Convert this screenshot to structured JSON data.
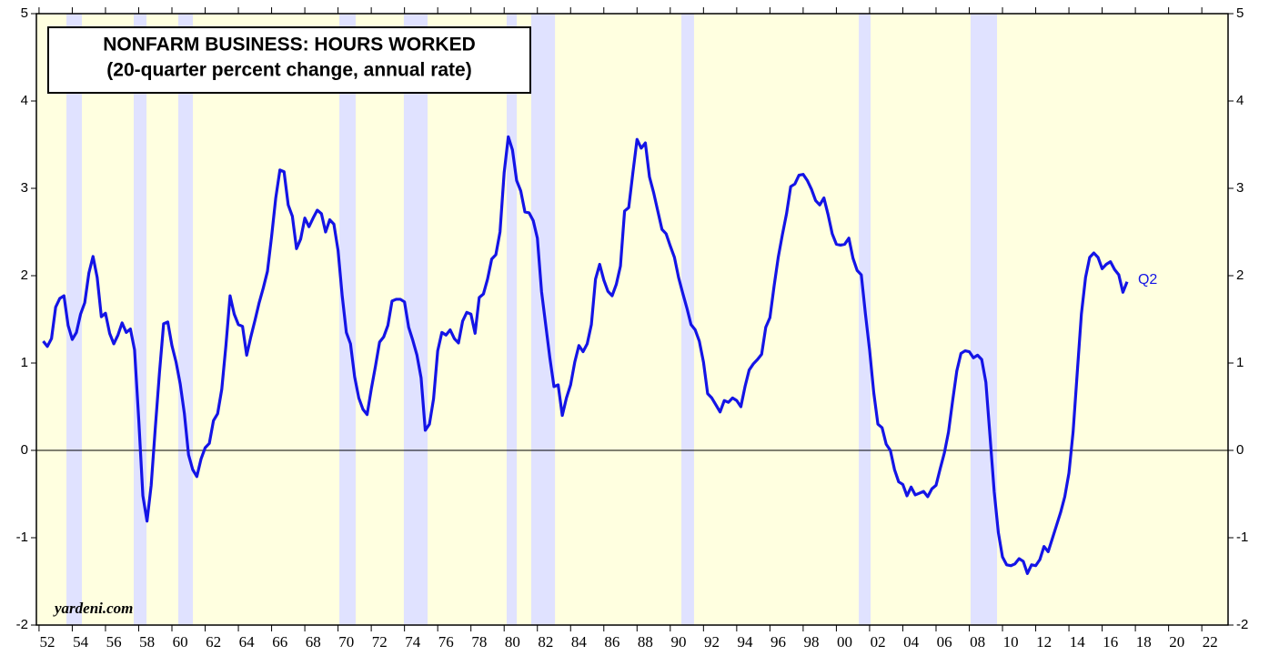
{
  "chart_data": {
    "type": "line",
    "title": "NONFARM BUSINESS: HOURS WORKED",
    "subtitle": "(20-quarter percent change, annual rate)",
    "source": "yardeni.com",
    "background": "#ffffe0",
    "shade_color": "#e0e2ff",
    "shaded_periods": [
      [
        1953.65,
        1954.58
      ],
      [
        1957.7,
        1958.47
      ],
      [
        1960.38,
        1961.26
      ],
      [
        1970.08,
        1971.06
      ],
      [
        1973.96,
        1975.39
      ],
      [
        1980.15,
        1980.76
      ],
      [
        1981.63,
        1983.06
      ],
      [
        1990.67,
        1991.43
      ],
      [
        2001.35,
        2002.06
      ],
      [
        2008.08,
        2009.67
      ]
    ],
    "xlim": [
      1951.84,
      2023.58
    ],
    "ylim": [
      -2,
      5
    ],
    "yticks": [
      -2,
      -1,
      0,
      1,
      2,
      3,
      4,
      5
    ],
    "xticks": [
      {
        "value": 1952,
        "label": "52"
      },
      {
        "value": 1954,
        "label": "54"
      },
      {
        "value": 1956,
        "label": "56"
      },
      {
        "value": 1958,
        "label": "58"
      },
      {
        "value": 1960,
        "label": "60"
      },
      {
        "value": 1962,
        "label": "62"
      },
      {
        "value": 1964,
        "label": "64"
      },
      {
        "value": 1966,
        "label": "66"
      },
      {
        "value": 1968,
        "label": "68"
      },
      {
        "value": 1970,
        "label": "70"
      },
      {
        "value": 1972,
        "label": "72"
      },
      {
        "value": 1974,
        "label": "74"
      },
      {
        "value": 1976,
        "label": "76"
      },
      {
        "value": 1978,
        "label": "78"
      },
      {
        "value": 1980,
        "label": "80"
      },
      {
        "value": 1982,
        "label": "82"
      },
      {
        "value": 1984,
        "label": "84"
      },
      {
        "value": 1986,
        "label": "86"
      },
      {
        "value": 1988,
        "label": "88"
      },
      {
        "value": 1990,
        "label": "90"
      },
      {
        "value": 1992,
        "label": "92"
      },
      {
        "value": 1994,
        "label": "94"
      },
      {
        "value": 1996,
        "label": "96"
      },
      {
        "value": 1998,
        "label": "98"
      },
      {
        "value": 2000,
        "label": "00"
      },
      {
        "value": 2002,
        "label": "02"
      },
      {
        "value": 2004,
        "label": "04"
      },
      {
        "value": 2006,
        "label": "06"
      },
      {
        "value": 2008,
        "label": "08"
      },
      {
        "value": 2010,
        "label": "10"
      },
      {
        "value": 2012,
        "label": "12"
      },
      {
        "value": 2014,
        "label": "14"
      },
      {
        "value": 2016,
        "label": "16"
      },
      {
        "value": 2018,
        "label": "18"
      },
      {
        "value": 2020,
        "label": "20"
      },
      {
        "value": 2022,
        "label": "22"
      }
    ],
    "x": [
      1952.25,
      1952.5,
      1952.75,
      1953,
      1953.25,
      1953.5,
      1953.75,
      1954,
      1954.25,
      1954.5,
      1954.75,
      1955,
      1955.25,
      1955.5,
      1955.75,
      1956,
      1956.25,
      1956.5,
      1956.75,
      1957,
      1957.25,
      1957.5,
      1957.75,
      1958,
      1958.25,
      1958.5,
      1958.75,
      1959,
      1959.25,
      1959.5,
      1959.75,
      1960,
      1960.25,
      1960.5,
      1960.75,
      1961,
      1961.25,
      1961.5,
      1961.75,
      1962,
      1962.25,
      1962.5,
      1962.75,
      1963,
      1963.25,
      1963.5,
      1963.75,
      1964,
      1964.25,
      1964.5,
      1964.75,
      1965,
      1965.25,
      1965.5,
      1965.75,
      1966,
      1966.25,
      1966.5,
      1966.75,
      1967,
      1967.25,
      1967.5,
      1967.75,
      1968,
      1968.25,
      1968.5,
      1968.75,
      1969,
      1969.25,
      1969.5,
      1969.75,
      1970,
      1970.25,
      1970.5,
      1970.75,
      1971,
      1971.25,
      1971.5,
      1971.75,
      1972,
      1972.25,
      1972.5,
      1972.75,
      1973,
      1973.25,
      1973.5,
      1973.75,
      1974,
      1974.25,
      1974.5,
      1974.75,
      1975,
      1975.25,
      1975.5,
      1975.75,
      1976,
      1976.25,
      1976.5,
      1976.75,
      1977,
      1977.25,
      1977.5,
      1977.75,
      1978,
      1978.25,
      1978.5,
      1978.75,
      1979,
      1979.25,
      1979.5,
      1979.75,
      1980,
      1980.25,
      1980.5,
      1980.75,
      1981,
      1981.25,
      1981.5,
      1981.75,
      1982,
      1982.25,
      1982.5,
      1982.75,
      1983,
      1983.25,
      1983.5,
      1983.75,
      1984,
      1984.25,
      1984.5,
      1984.75,
      1985,
      1985.25,
      1985.5,
      1985.75,
      1986,
      1986.25,
      1986.5,
      1986.75,
      1987,
      1987.25,
      1987.5,
      1987.75,
      1988,
      1988.25,
      1988.5,
      1988.75,
      1989,
      1989.25,
      1989.5,
      1989.75,
      1990,
      1990.25,
      1990.5,
      1990.75,
      1991,
      1991.25,
      1991.5,
      1991.75,
      1992,
      1992.25,
      1992.5,
      1992.75,
      1993,
      1993.25,
      1993.5,
      1993.75,
      1994,
      1994.25,
      1994.5,
      1994.75,
      1995,
      1995.25,
      1995.5,
      1995.75,
      1996,
      1996.25,
      1996.5,
      1996.75,
      1997,
      1997.25,
      1997.5,
      1997.75,
      1998,
      1998.25,
      1998.5,
      1998.75,
      1999,
      1999.25,
      1999.5,
      1999.75,
      2000,
      2000.25,
      2000.5,
      2000.75,
      2001,
      2001.25,
      2001.5,
      2001.75,
      2002,
      2002.25,
      2002.5,
      2002.75,
      2003,
      2003.25,
      2003.5,
      2003.75,
      2004,
      2004.25,
      2004.5,
      2004.75,
      2005,
      2005.25,
      2005.5,
      2005.75,
      2006,
      2006.25,
      2006.5,
      2006.75,
      2007,
      2007.25,
      2007.5,
      2007.75,
      2008,
      2008.25,
      2008.5,
      2008.75,
      2009,
      2009.25,
      2009.5,
      2009.75,
      2010,
      2010.25,
      2010.5,
      2010.75,
      2011,
      2011.25,
      2011.5,
      2011.75,
      2012,
      2012.25,
      2012.5,
      2012.75,
      2013,
      2013.25,
      2013.5,
      2013.75,
      2014,
      2014.25,
      2014.5,
      2014.75,
      2015,
      2015.25,
      2015.5,
      2015.75,
      2016,
      2016.25,
      2016.5,
      2016.75,
      2017,
      2017.25,
      2017.5
    ],
    "series": [
      {
        "end_label": "Q2",
        "color": "#1414e6",
        "values": [
          1.25,
          1.19,
          1.28,
          1.64,
          1.74,
          1.77,
          1.43,
          1.27,
          1.35,
          1.56,
          1.69,
          2.03,
          2.22,
          1.98,
          1.53,
          1.57,
          1.34,
          1.22,
          1.32,
          1.46,
          1.35,
          1.39,
          1.15,
          0.36,
          -0.52,
          -0.81,
          -0.4,
          0.26,
          0.89,
          1.45,
          1.47,
          1.2,
          1.01,
          0.76,
          0.42,
          -0.05,
          -0.22,
          -0.3,
          -0.1,
          0.03,
          0.08,
          0.34,
          0.42,
          0.7,
          1.2,
          1.77,
          1.56,
          1.44,
          1.42,
          1.09,
          1.3,
          1.49,
          1.69,
          1.86,
          2.05,
          2.45,
          2.89,
          3.21,
          3.19,
          2.81,
          2.68,
          2.31,
          2.42,
          2.66,
          2.56,
          2.66,
          2.75,
          2.71,
          2.5,
          2.64,
          2.59,
          2.29,
          1.77,
          1.35,
          1.22,
          0.84,
          0.6,
          0.47,
          0.41,
          0.7,
          0.96,
          1.24,
          1.3,
          1.43,
          1.71,
          1.73,
          1.73,
          1.7,
          1.41,
          1.26,
          1.09,
          0.83,
          0.23,
          0.3,
          0.59,
          1.14,
          1.35,
          1.32,
          1.38,
          1.28,
          1.23,
          1.48,
          1.58,
          1.56,
          1.34,
          1.75,
          1.79,
          1.96,
          2.19,
          2.24,
          2.5,
          3.18,
          3.59,
          3.44,
          3.09,
          2.97,
          2.73,
          2.72,
          2.63,
          2.43,
          1.82,
          1.44,
          1.06,
          0.73,
          0.75,
          0.4,
          0.6,
          0.75,
          1.01,
          1.2,
          1.13,
          1.22,
          1.44,
          1.96,
          2.13,
          1.95,
          1.82,
          1.77,
          1.9,
          2.11,
          2.74,
          2.78,
          3.18,
          3.56,
          3.46,
          3.52,
          3.13,
          2.95,
          2.74,
          2.53,
          2.48,
          2.34,
          2.21,
          1.98,
          1.8,
          1.63,
          1.44,
          1.38,
          1.25,
          1.01,
          0.65,
          0.6,
          0.52,
          0.44,
          0.57,
          0.55,
          0.6,
          0.57,
          0.5,
          0.73,
          0.92,
          0.99,
          1.04,
          1.1,
          1.41,
          1.52,
          1.88,
          2.21,
          2.47,
          2.71,
          3.02,
          3.05,
          3.15,
          3.16,
          3.09,
          2.99,
          2.86,
          2.81,
          2.89,
          2.7,
          2.48,
          2.36,
          2.35,
          2.36,
          2.43,
          2.2,
          2.06,
          2.01,
          1.56,
          1.15,
          0.66,
          0.3,
          0.26,
          0.07,
          0.0,
          -0.22,
          -0.36,
          -0.39,
          -0.52,
          -0.42,
          -0.51,
          -0.49,
          -0.47,
          -0.53,
          -0.44,
          -0.4,
          -0.21,
          -0.03,
          0.21,
          0.57,
          0.91,
          1.11,
          1.14,
          1.13,
          1.06,
          1.09,
          1.04,
          0.78,
          0.16,
          -0.47,
          -0.94,
          -1.22,
          -1.31,
          -1.32,
          -1.3,
          -1.24,
          -1.27,
          -1.41,
          -1.31,
          -1.32,
          -1.25,
          -1.1,
          -1.16,
          -1.01,
          -0.86,
          -0.71,
          -0.53,
          -0.26,
          0.21,
          0.89,
          1.56,
          1.98,
          2.21,
          2.26,
          2.21,
          2.08,
          2.13,
          2.16,
          2.07,
          2.01,
          1.81,
          1.93
        ]
      }
    ]
  }
}
